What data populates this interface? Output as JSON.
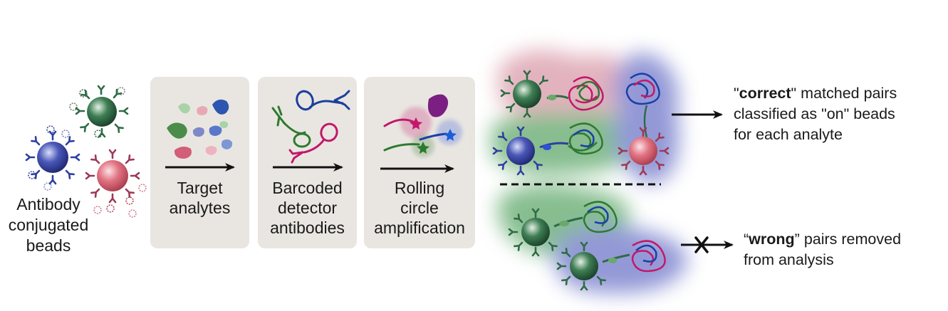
{
  "steps": [
    {
      "line1": "Target",
      "line2": "analytes",
      "line3": ""
    },
    {
      "line1": "Barcoded",
      "line2": "detector",
      "line3": "antibodies"
    },
    {
      "line1": "Rolling",
      "line2": "circle",
      "line3": "amplification"
    }
  ],
  "beads_label": {
    "line1": "Antibody",
    "line2": "conjugated",
    "line3": "beads"
  },
  "correct": {
    "quote_open": "\"",
    "keyword": "correct",
    "quote_close": "\"",
    "line1_rest": " matched pairs",
    "line2": "classified as \"on\" beads",
    "line3": "for each analyte"
  },
  "wrong": {
    "quote_open": "“",
    "keyword": "wrong",
    "quote_close": "”",
    "line1_rest": " pairs removed",
    "line2": "from analysis"
  },
  "colors": {
    "bead_blue": "#2e3f9e",
    "bead_green": "#2f6b45",
    "bead_red": "#e06a7a",
    "magenta": "#c2186b",
    "blue_glow": "#6f77c9",
    "green_glow": "#5fa86a",
    "pink_glow": "#d99aa9",
    "panel_bg": "#e9e6e1"
  }
}
